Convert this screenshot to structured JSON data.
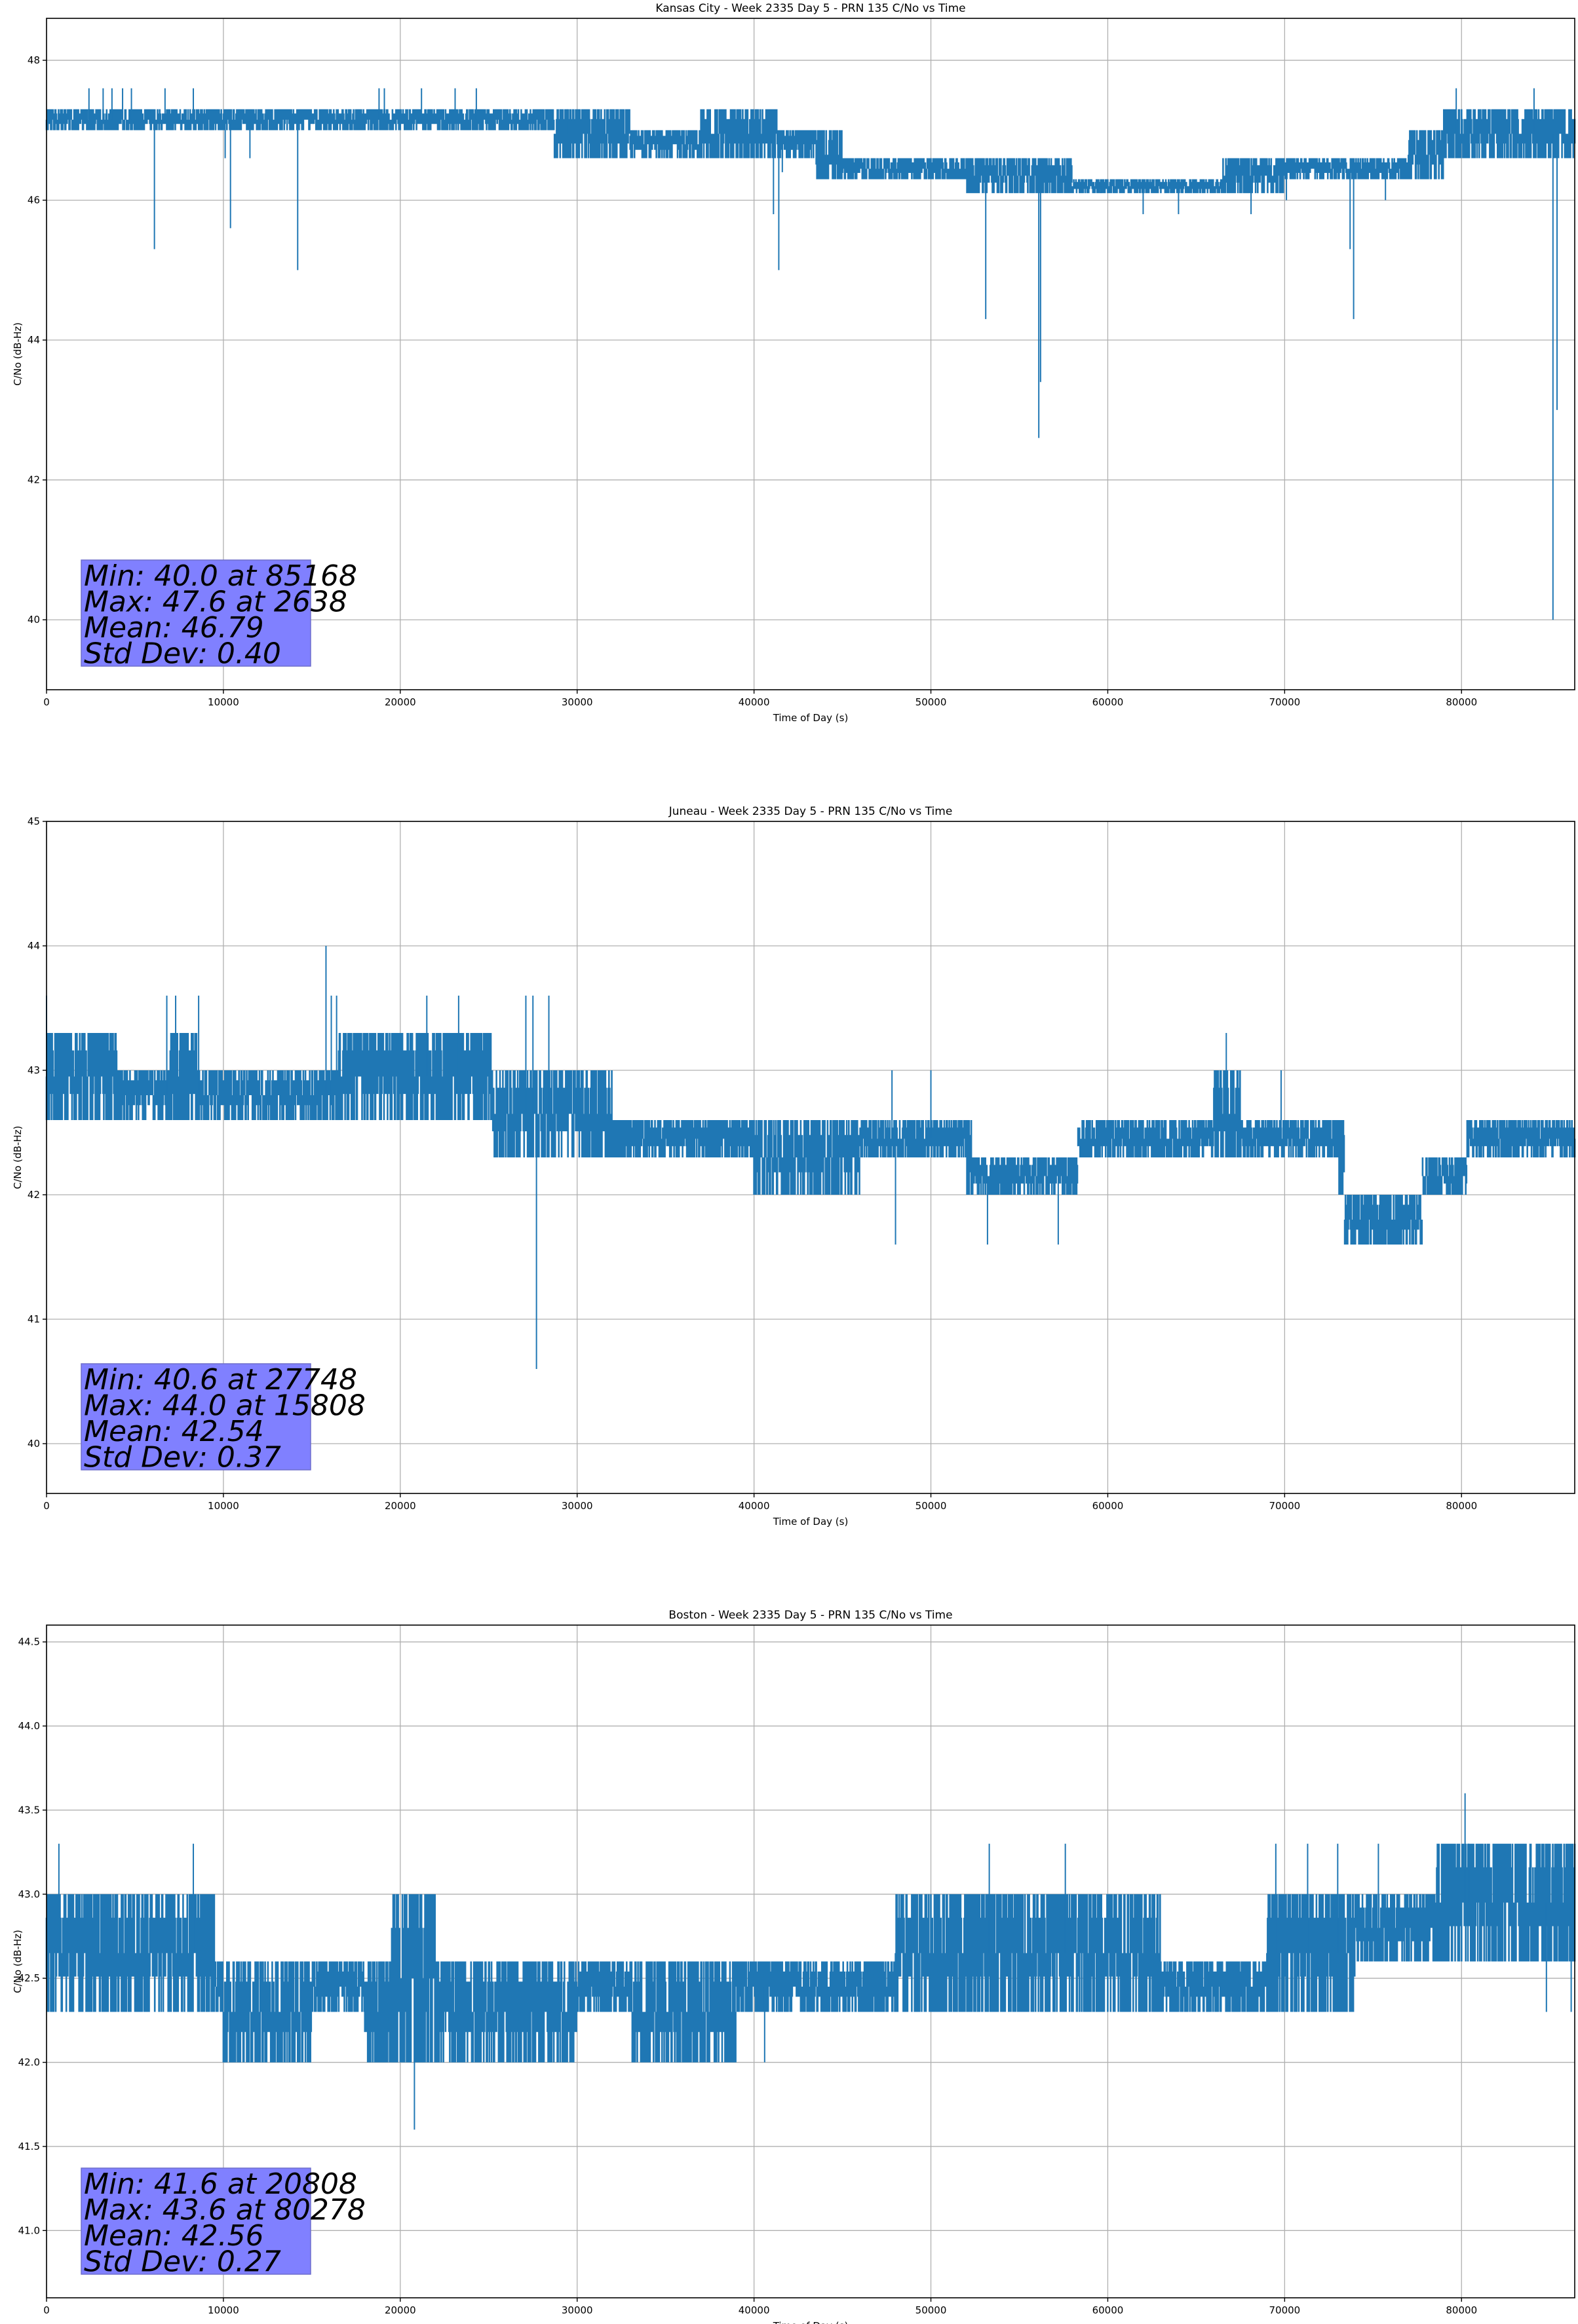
{
  "colors": {
    "series": "#1f77b4",
    "grid": "#b0b0b0",
    "statbox_fill": "#8080ff",
    "statbox_edge": "#6f6fcc"
  },
  "chart_data": [
    {
      "type": "line",
      "title": "Kansas City - Week 2335 Day 5 - PRN 135 C/No vs Time",
      "xlabel": "Time of Day (s)",
      "ylabel": "C/No (dB-Hz)",
      "xlim": [
        0,
        86400
      ],
      "ylim": [
        39.0,
        48.6
      ],
      "xticks": [
        0,
        10000,
        20000,
        30000,
        40000,
        50000,
        60000,
        70000,
        80000
      ],
      "yticks": [
        40,
        42,
        44,
        46,
        48
      ],
      "ytick_decimals": 0,
      "grid": true,
      "series": [
        {
          "band": [
            [
              0,
              47.0,
              47.3
            ],
            [
              5000,
              47.0,
              47.3
            ],
            [
              10000,
              47.0,
              47.3
            ],
            [
              15000,
              47.0,
              47.3
            ],
            [
              20000,
              47.0,
              47.3
            ],
            [
              25000,
              47.0,
              47.3
            ],
            [
              28500,
              47.0,
              47.3
            ],
            [
              28700,
              46.6,
              47.3
            ],
            [
              33000,
              46.6,
              47.0
            ],
            [
              37000,
              46.6,
              47.3
            ],
            [
              41000,
              46.6,
              47.3
            ],
            [
              41300,
              46.6,
              47.0
            ],
            [
              43500,
              46.3,
              47.0
            ],
            [
              45000,
              46.3,
              46.6
            ],
            [
              50000,
              46.3,
              46.6
            ],
            [
              52000,
              46.1,
              46.6
            ],
            [
              58000,
              46.1,
              46.3
            ],
            [
              64000,
              46.1,
              46.3
            ],
            [
              66500,
              46.1,
              46.6
            ],
            [
              70000,
              46.3,
              46.6
            ],
            [
              76500,
              46.3,
              46.6
            ],
            [
              77000,
              46.3,
              47.0
            ],
            [
              79000,
              46.6,
              47.3
            ],
            [
              86400,
              46.6,
              47.3
            ]
          ],
          "spikes": [
            [
              2400,
              47.6
            ],
            [
              3200,
              47.6
            ],
            [
              3700,
              47.6
            ],
            [
              4300,
              47.6
            ],
            [
              4800,
              47.6
            ],
            [
              6100,
              45.3
            ],
            [
              6700,
              47.6
            ],
            [
              8300,
              47.6
            ],
            [
              10100,
              46.6
            ],
            [
              10400,
              45.6
            ],
            [
              11500,
              46.6
            ],
            [
              14200,
              45.0
            ],
            [
              18800,
              47.6
            ],
            [
              19100,
              47.6
            ],
            [
              21200,
              47.6
            ],
            [
              23100,
              47.6
            ],
            [
              24300,
              47.6
            ],
            [
              29500,
              47.3
            ],
            [
              41100,
              45.8
            ],
            [
              41400,
              45.0
            ],
            [
              41600,
              46.4
            ],
            [
              53100,
              44.3
            ],
            [
              56100,
              42.6
            ],
            [
              56200,
              43.4
            ],
            [
              59600,
              46.1
            ],
            [
              62000,
              45.8
            ],
            [
              64000,
              45.8
            ],
            [
              68100,
              45.8
            ],
            [
              70100,
              46.0
            ],
            [
              73700,
              45.3
            ],
            [
              73900,
              44.3
            ],
            [
              75700,
              46.0
            ],
            [
              79700,
              47.6
            ],
            [
              84100,
              47.6
            ],
            [
              85170,
              40.0
            ],
            [
              85400,
              43.0
            ]
          ]
        }
      ],
      "stats": [
        "Min: 40.0 at 85168",
        "Max: 47.6 at 2638",
        "Mean: 46.79",
        "Std Dev: 0.40"
      ]
    },
    {
      "type": "line",
      "title": "Juneau - Week 2335 Day 5 - PRN 135 C/No vs Time",
      "xlabel": "Time of Day (s)",
      "ylabel": "C/No (dB-Hz)",
      "xlim": [
        0,
        86400
      ],
      "ylim": [
        39.6,
        45.0
      ],
      "xticks": [
        0,
        10000,
        20000,
        30000,
        40000,
        50000,
        60000,
        70000,
        80000
      ],
      "yticks": [
        40,
        41,
        42,
        43,
        44,
        45
      ],
      "ytick_decimals": 0,
      "grid": true,
      "series": [
        {
          "band": [
            [
              0,
              42.6,
              43.3
            ],
            [
              4000,
              42.6,
              43.0
            ],
            [
              7000,
              42.6,
              43.3
            ],
            [
              8500,
              42.6,
              43.0
            ],
            [
              10000,
              42.6,
              43.0
            ],
            [
              15000,
              42.6,
              43.0
            ],
            [
              16500,
              42.6,
              43.3
            ],
            [
              20000,
              42.6,
              43.3
            ],
            [
              25000,
              42.6,
              43.3
            ],
            [
              25200,
              42.3,
              43.0
            ],
            [
              30000,
              42.3,
              43.0
            ],
            [
              32000,
              42.3,
              42.6
            ],
            [
              37000,
              42.3,
              42.6
            ],
            [
              40000,
              42.0,
              42.6
            ],
            [
              46000,
              42.3,
              42.6
            ],
            [
              52000,
              42.0,
              42.6
            ],
            [
              52300,
              42.0,
              42.3
            ],
            [
              58000,
              42.0,
              42.3
            ],
            [
              58300,
              42.3,
              42.6
            ],
            [
              63000,
              42.3,
              42.6
            ],
            [
              66000,
              42.3,
              43.0
            ],
            [
              67500,
              42.3,
              42.6
            ],
            [
              73000,
              42.0,
              42.6
            ],
            [
              73400,
              41.6,
              42.0
            ],
            [
              77500,
              41.6,
              42.0
            ],
            [
              77800,
              42.0,
              42.3
            ],
            [
              80000,
              42.0,
              42.3
            ],
            [
              80300,
              42.3,
              42.6
            ],
            [
              86400,
              42.3,
              42.6
            ]
          ],
          "spikes": [
            [
              0,
              43.6
            ],
            [
              6800,
              43.6
            ],
            [
              7300,
              43.6
            ],
            [
              8600,
              43.6
            ],
            [
              15800,
              44.0
            ],
            [
              16100,
              43.6
            ],
            [
              16400,
              43.6
            ],
            [
              21500,
              43.6
            ],
            [
              23300,
              43.6
            ],
            [
              27100,
              43.6
            ],
            [
              27500,
              43.6
            ],
            [
              27700,
              40.6
            ],
            [
              28400,
              43.6
            ],
            [
              48000,
              41.6
            ],
            [
              47800,
              43.0
            ],
            [
              53200,
              41.6
            ],
            [
              57200,
              41.6
            ],
            [
              66700,
              43.3
            ],
            [
              69800,
              43.0
            ],
            [
              50000,
              43.0
            ]
          ]
        }
      ],
      "stats": [
        "Min: 40.6 at 27748",
        "Max: 44.0 at 15808",
        "Mean: 42.54",
        "Std Dev: 0.37"
      ]
    },
    {
      "type": "line",
      "title": "Boston - Week 2335 Day 5 - PRN 135 C/No vs Time",
      "xlabel": "Time of Day (s)",
      "ylabel": "C/No (dB-Hz)",
      "xlim": [
        0,
        86400
      ],
      "ylim": [
        40.6,
        44.6
      ],
      "xticks": [
        0,
        10000,
        20000,
        30000,
        40000,
        50000,
        60000,
        70000,
        80000
      ],
      "yticks": [
        41.0,
        41.5,
        42.0,
        42.5,
        43.0,
        43.5,
        44.0,
        44.5
      ],
      "ytick_decimals": 1,
      "grid": true,
      "series": [
        {
          "band": [
            [
              0,
              42.3,
              43.0
            ],
            [
              5000,
              42.3,
              43.0
            ],
            [
              9500,
              42.3,
              42.6
            ],
            [
              10000,
              42.0,
              42.6
            ],
            [
              15000,
              42.3,
              42.6
            ],
            [
              18000,
              42.0,
              42.6
            ],
            [
              19500,
              42.0,
              43.0
            ],
            [
              22000,
              42.0,
              42.6
            ],
            [
              28000,
              42.0,
              42.6
            ],
            [
              30000,
              42.3,
              42.6
            ],
            [
              33000,
              42.0,
              42.6
            ],
            [
              39000,
              42.3,
              42.6
            ],
            [
              46000,
              42.3,
              42.6
            ],
            [
              48000,
              42.3,
              43.0
            ],
            [
              57000,
              42.3,
              43.0
            ],
            [
              63000,
              42.3,
              42.6
            ],
            [
              69000,
              42.3,
              43.0
            ],
            [
              74000,
              42.6,
              43.0
            ],
            [
              78500,
              42.6,
              43.3
            ],
            [
              86400,
              42.6,
              43.3
            ]
          ],
          "spikes": [
            [
              700,
              43.3
            ],
            [
              8300,
              43.3
            ],
            [
              20800,
              41.6
            ],
            [
              40600,
              42.0
            ],
            [
              53300,
              43.3
            ],
            [
              57600,
              43.3
            ],
            [
              69500,
              43.3
            ],
            [
              71300,
              43.3
            ],
            [
              73000,
              43.3
            ],
            [
              75300,
              43.3
            ],
            [
              80200,
              43.6
            ],
            [
              80400,
              43.3
            ],
            [
              86200,
              42.3
            ],
            [
              84800,
              42.3
            ]
          ]
        }
      ],
      "stats": [
        "Min: 41.6 at 20808",
        "Max: 43.6 at 80278",
        "Mean: 42.56",
        "Std Dev: 0.27"
      ]
    }
  ]
}
